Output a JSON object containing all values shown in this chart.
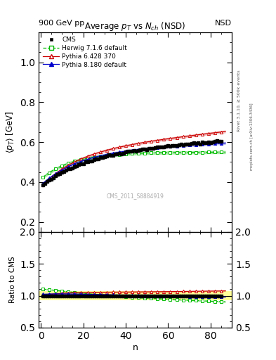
{
  "title": "Average $p_T$ vs $N_{ch}$ (NSD)",
  "top_left_label": "900 GeV pp",
  "top_right_label": "NSD",
  "xlabel": "n",
  "ylabel_main": "$\\langle p_T \\rangle$ [GeV]",
  "ylabel_ratio": "Ratio to CMS",
  "watermark": "CMS_2011_S8884919",
  "rivet_label": "Rivet 3.1.10, ≥ 500k events",
  "mcplots_label": "mcplots.cern.ch [arXiv:1306.3436]",
  "ylim_main": [
    0.15,
    1.15
  ],
  "ylim_ratio": [
    0.5,
    2.0
  ],
  "yticks_main": [
    0.2,
    0.4,
    0.6,
    0.8,
    1.0
  ],
  "yticks_ratio": [
    0.5,
    1.0,
    1.5,
    2.0
  ],
  "xlim": [
    -1,
    90
  ],
  "xticks": [
    0,
    20,
    40,
    60,
    80
  ],
  "cms_color": "#000000",
  "herwig_color": "#00bb00",
  "pythia6_color": "#cc0000",
  "pythia8_color": "#0000cc",
  "band_color": "#ffff99"
}
